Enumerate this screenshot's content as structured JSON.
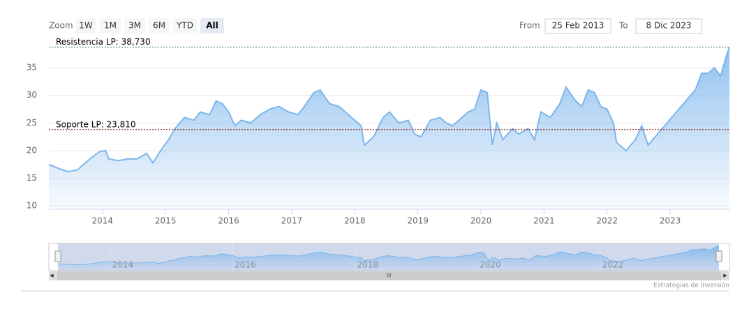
{
  "ui": {
    "zoom_label": "Zoom",
    "buttons": [
      "1W",
      "1M",
      "3M",
      "6M",
      "YTD",
      "All"
    ],
    "selected_button": 5,
    "from_label": "From",
    "from_value": "25 Feb 2013",
    "to_label": "To",
    "to_value": "8 Dic 2023",
    "credits": "Estrategias de Inversión"
  },
  "chart_data": {
    "type": "area",
    "color": "#7cb5ec",
    "x": [
      2013.15,
      2013.3,
      2013.45,
      2013.6,
      2013.8,
      2013.95,
      2014.05,
      2014.1,
      2014.25,
      2014.4,
      2014.55,
      2014.7,
      2014.8,
      2014.95,
      2015.05,
      2015.15,
      2015.3,
      2015.45,
      2015.55,
      2015.7,
      2015.8,
      2015.9,
      2016.0,
      2016.1,
      2016.2,
      2016.35,
      2016.5,
      2016.65,
      2016.8,
      2016.95,
      2017.1,
      2017.2,
      2017.35,
      2017.45,
      2017.6,
      2017.75,
      2017.9,
      2018.0,
      2018.1,
      2018.15,
      2018.3,
      2018.45,
      2018.55,
      2018.7,
      2018.85,
      2018.95,
      2019.05,
      2019.2,
      2019.35,
      2019.45,
      2019.55,
      2019.65,
      2019.8,
      2019.9,
      2020.0,
      2020.1,
      2020.18,
      2020.25,
      2020.35,
      2020.5,
      2020.6,
      2020.75,
      2020.85,
      2020.95,
      2021.1,
      2021.25,
      2021.35,
      2021.5,
      2021.6,
      2021.7,
      2021.8,
      2021.9,
      2022.0,
      2022.1,
      2022.15,
      2022.3,
      2022.45,
      2022.55,
      2022.65,
      2022.8,
      2022.95,
      2023.1,
      2023.25,
      2023.4,
      2023.5,
      2023.6,
      2023.7,
      2023.8,
      2023.9,
      2023.94
    ],
    "values": [
      17.5,
      16.8,
      16.2,
      16.5,
      18.5,
      19.8,
      20,
      18.5,
      18.2,
      18.5,
      18.5,
      19.5,
      17.8,
      20.5,
      22,
      24,
      26,
      25.5,
      27,
      26.5,
      29,
      28.5,
      27,
      24.5,
      25.5,
      25,
      26.5,
      27.5,
      28,
      27,
      26.5,
      28,
      30.5,
      31,
      28.5,
      28,
      26.5,
      25.5,
      24.5,
      21,
      22.5,
      26,
      27,
      25,
      25.5,
      23,
      22.5,
      25.5,
      26,
      25,
      24.5,
      25.5,
      27,
      27.5,
      31,
      30.5,
      21,
      25,
      22,
      24,
      23,
      24,
      22,
      27,
      26,
      28.5,
      31.5,
      29,
      28,
      31,
      30.5,
      28,
      27.5,
      25,
      21.5,
      20,
      22,
      24.5,
      21,
      23,
      25,
      27,
      29,
      31,
      34,
      34,
      35,
      33.5,
      37.5,
      38.7
    ],
    "xlim": [
      2013.15,
      2023.94
    ],
    "xticks": [
      2014,
      2015,
      2016,
      2017,
      2018,
      2019,
      2020,
      2021,
      2022,
      2023
    ],
    "ylim": [
      9.4,
      38.8
    ],
    "yticks": [
      10,
      15,
      20,
      25,
      30,
      35
    ],
    "grid": true,
    "plot_lines": [
      {
        "value": 38.73,
        "label": "Resistencia LP: 38,730"
      },
      {
        "value": 23.81,
        "label": "Soporte LP: 23,810"
      }
    ],
    "navigator_xticks": [
      2014,
      2016,
      2018,
      2020,
      2022
    ]
  }
}
